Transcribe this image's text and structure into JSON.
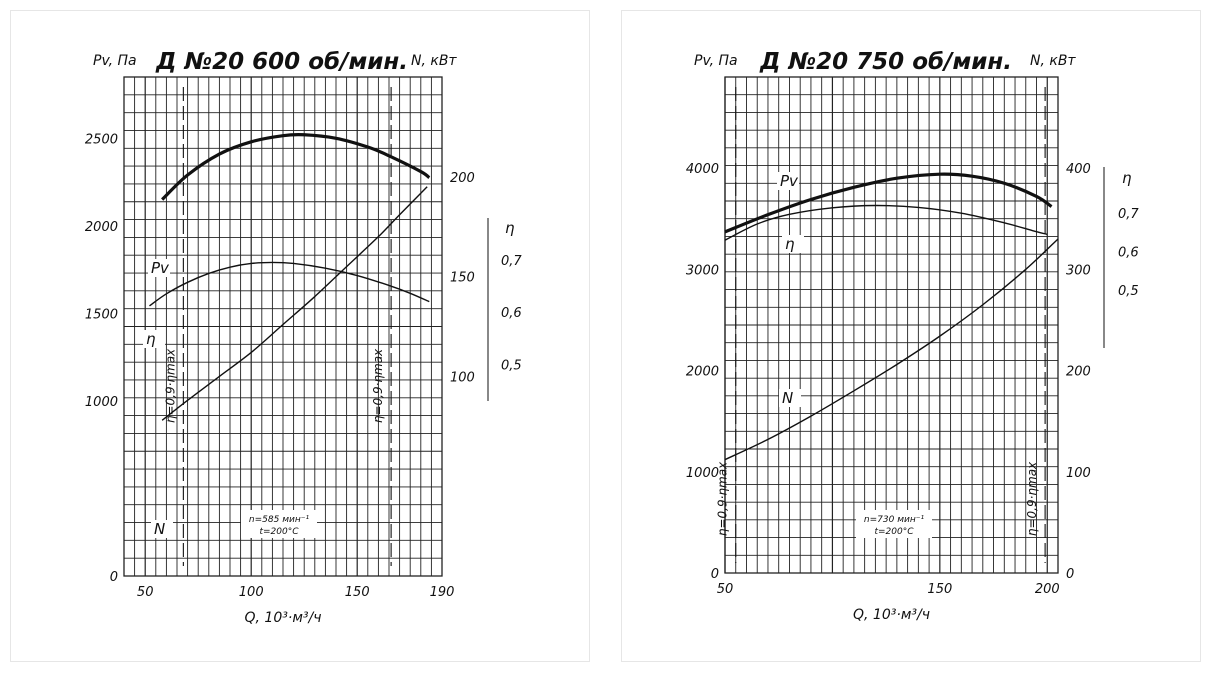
{
  "colors": {
    "line": "#111111",
    "grid": "#222222",
    "background": "#ffffff"
  },
  "chart_data": [
    {
      "type": "line",
      "title": "Д №20 600 об/мин.",
      "y_left_label": "Pv, Па",
      "y_right_label": "N, кВт",
      "eta_label": "η",
      "xlabel": "Q, 10³·м³/ч",
      "xlim": [
        40,
        190
      ],
      "ylim": [
        0,
        2850
      ],
      "power_ylim": [
        0,
        250
      ],
      "x_ticks": [
        "50",
        "100",
        "150",
        "190"
      ],
      "y_ticks": [
        "0",
        "1000",
        "1500",
        "2000",
        "2500"
      ],
      "power_ticks": [
        "100",
        "150",
        "200"
      ],
      "eta_ticks": [
        "0,5",
        "0,6",
        "0,7"
      ],
      "eta_scale_ylim": [
        0.43,
        0.78
      ],
      "note_lines": [
        "n=585 мин⁻¹",
        "t=200°C"
      ],
      "boundary_label": "η=0,9·ηmax",
      "boundaries_x": [
        68,
        166
      ],
      "grid": true,
      "series": [
        {
          "name": "Pv",
          "bold": true,
          "x": [
            58,
            70,
            85,
            100,
            115,
            125,
            140,
            155,
            165,
            180,
            184
          ],
          "y": [
            2150,
            2290,
            2410,
            2480,
            2515,
            2520,
            2500,
            2450,
            2400,
            2310,
            2275
          ]
        },
        {
          "name": "η",
          "scale": "eta",
          "x": [
            52,
            60,
            70,
            80,
            90,
            100,
            110,
            120,
            135,
            150,
            165,
            175,
            184
          ],
          "y": [
            0.612,
            0.635,
            0.657,
            0.674,
            0.686,
            0.693,
            0.695,
            0.693,
            0.684,
            0.67,
            0.651,
            0.636,
            0.62
          ]
        },
        {
          "name": "N",
          "scale": "power",
          "x": [
            58,
            70,
            85,
            100,
            115,
            130,
            145,
            160,
            170,
            183
          ],
          "y": [
            78,
            88,
            100,
            112,
            126,
            140,
            155,
            170,
            181,
            195
          ]
        }
      ]
    },
    {
      "type": "line",
      "title": "Д №20 750 об/мин.",
      "y_left_label": "Pv, Па",
      "y_right_label": "N, кВт",
      "eta_label": "η",
      "xlabel": "Q, 10³·м³/ч",
      "xlim": [
        50,
        205
      ],
      "ylim": [
        0,
        4900
      ],
      "power_ylim": [
        0,
        490
      ],
      "x_ticks": [
        "50",
        "150",
        "200"
      ],
      "y_ticks": [
        "0",
        "1000",
        "2000",
        "3000",
        "4000"
      ],
      "power_ticks": [
        "0",
        "100",
        "200",
        "300",
        "400"
      ],
      "eta_ticks": [
        "0,5",
        "0,6",
        "0,7"
      ],
      "eta_scale_ylim": [
        0.35,
        0.82
      ],
      "note_lines": [
        "n=730 мин⁻¹",
        "t=200°C"
      ],
      "boundary_label": "η=0,9·ηmax",
      "boundaries_x": [
        55,
        199
      ],
      "grid": true,
      "series": [
        {
          "name": "Pv",
          "bold": true,
          "x": [
            50,
            70,
            90,
            110,
            130,
            150,
            165,
            180,
            195,
            202
          ],
          "y": [
            3370,
            3540,
            3690,
            3810,
            3900,
            3940,
            3920,
            3850,
            3720,
            3620
          ]
        },
        {
          "name": "η",
          "scale": "eta",
          "x": [
            50,
            65,
            80,
            100,
            120,
            140,
            160,
            180,
            193,
            200
          ],
          "y": [
            0.63,
            0.672,
            0.697,
            0.714,
            0.72,
            0.715,
            0.7,
            0.675,
            0.655,
            0.645
          ]
        },
        {
          "name": "N",
          "scale": "power",
          "x": [
            50,
            70,
            90,
            110,
            130,
            150,
            170,
            190,
            205
          ],
          "y": [
            112,
            132,
            155,
            180,
            206,
            234,
            265,
            300,
            330
          ]
        }
      ]
    }
  ]
}
